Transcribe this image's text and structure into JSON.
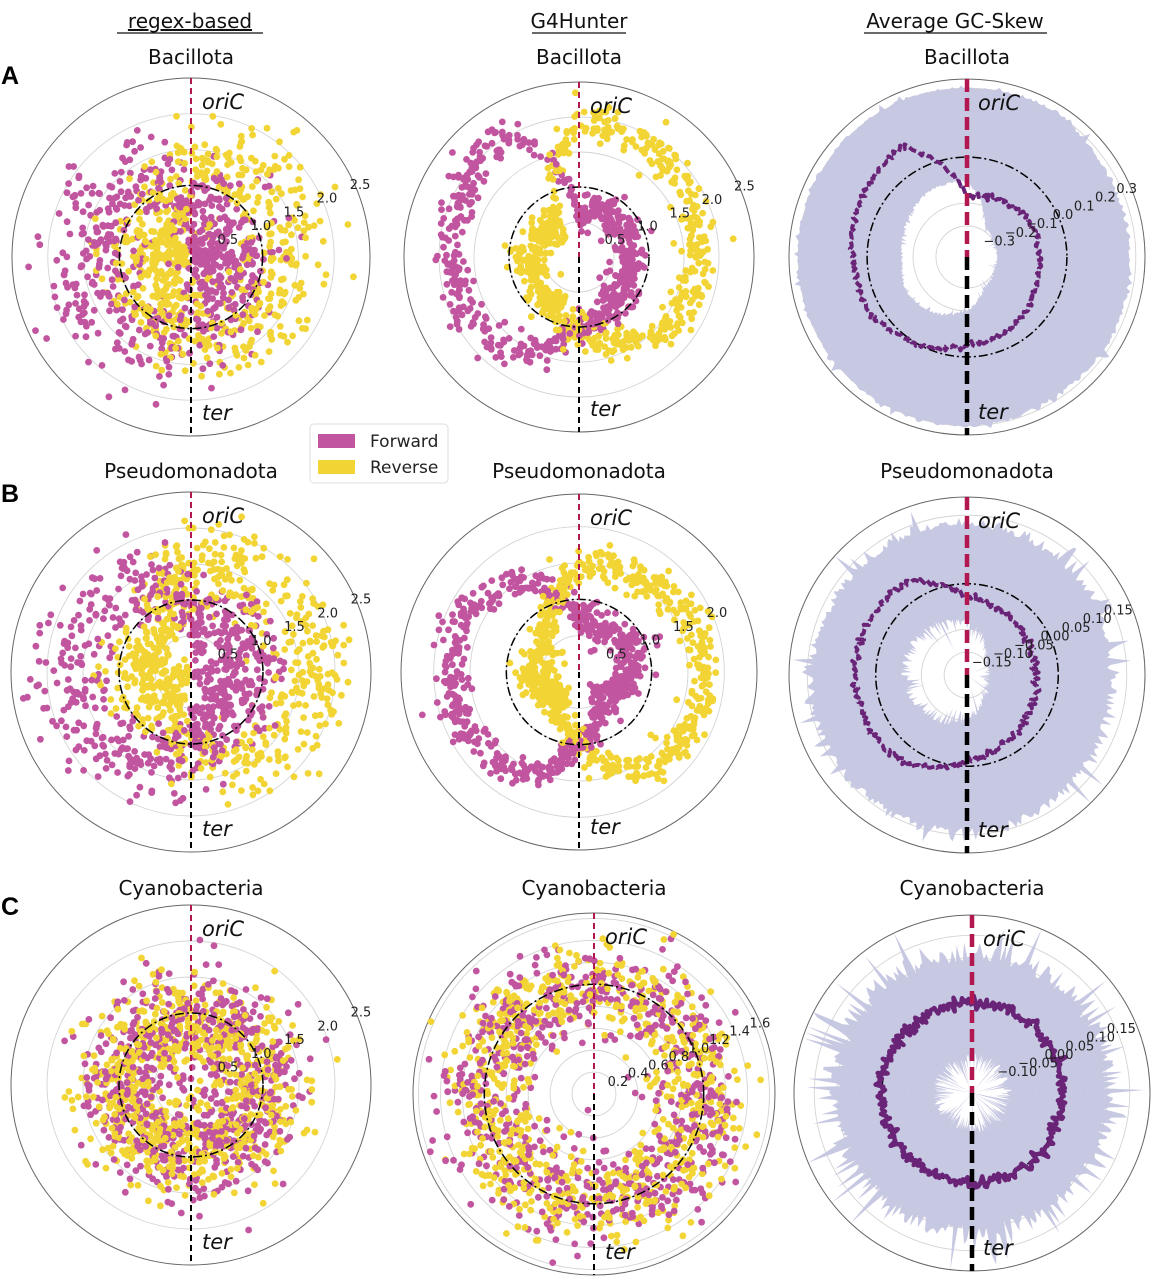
{
  "panel_letters": [
    "A",
    "B",
    "C"
  ],
  "columns": [
    "regex-based",
    "G4Hunter",
    "Average GC-Skew"
  ],
  "legend": {
    "items": [
      {
        "label": "Forward",
        "color": "#c2559f"
      },
      {
        "label": "Reverse",
        "color": "#f2d535"
      }
    ]
  },
  "colors": {
    "forward": "#c2559f",
    "reverse": "#f2d535",
    "gc_band": "#c4c5e0",
    "gc_line": "#6a2477",
    "oriC_line": "#b3174f",
    "ter_line": "#000000"
  },
  "chart_data": [
    {
      "row": "A",
      "method": "regex-based",
      "title": "Bacillota",
      "type": "polar-scatter",
      "rlim": [
        0,
        2.5
      ],
      "rtick_labels": [
        "0.5",
        "1.0",
        "1.5",
        "2.0",
        "2.5"
      ],
      "reference_circle": 1.0,
      "angle_labels": {
        "top": "oriC",
        "bottom": "ter"
      },
      "series": [
        {
          "name": "Forward",
          "profile": [
            0.7,
            0.6,
            0.6,
            0.6,
            0.65,
            0.75,
            1.0,
            1.3,
            1.4,
            1.45,
            1.4,
            1.2
          ],
          "spread": 0.38,
          "n": 650
        },
        {
          "name": "Reverse",
          "profile": [
            1.2,
            1.4,
            1.45,
            1.4,
            1.35,
            1.2,
            1.0,
            0.7,
            0.65,
            0.65,
            0.65,
            0.75
          ],
          "spread": 0.38,
          "n": 650
        }
      ]
    },
    {
      "row": "A",
      "method": "G4Hunter",
      "title": "Bacillota",
      "type": "polar-scatter",
      "rlim": [
        0,
        2.5
      ],
      "rtick_labels": [
        "0.5",
        "1.0",
        "1.5",
        "2.0",
        "2.5"
      ],
      "reference_circle": 1.0,
      "angle_labels": {
        "top": "oriC",
        "bottom": "ter"
      },
      "series": [
        {
          "name": "Forward",
          "profile": [
            0.6,
            0.75,
            0.75,
            0.75,
            0.75,
            0.85,
            1.0,
            1.6,
            1.8,
            1.85,
            1.9,
            2.1
          ],
          "spread": 0.13,
          "n": 600
        },
        {
          "name": "Reverse",
          "profile": [
            2.0,
            1.9,
            1.8,
            1.7,
            1.65,
            1.4,
            1.0,
            0.8,
            0.7,
            0.7,
            0.65,
            0.6
          ],
          "spread": 0.13,
          "n": 600
        }
      ]
    },
    {
      "row": "A",
      "method": "Average GC-Skew",
      "title": "Bacillota",
      "type": "polar-line-area",
      "rlim": [
        -0.435,
        0.34
      ],
      "rtick_labels": [
        "−0.3",
        "−0.2",
        "−0.1",
        "0.0",
        "0.1",
        "0.2",
        "0.3"
      ],
      "reference_circle": 0.0,
      "angle_labels": {
        "top": "oriC",
        "bottom": "ter"
      },
      "line": {
        "profile": [
          -0.17,
          -0.15,
          -0.12,
          -0.12,
          -0.1,
          -0.07,
          -0.05,
          0.0,
          0.05,
          0.065,
          0.09,
          0.12
        ],
        "noise": 0.006
      },
      "band": {
        "outer": [
          0.3,
          0.3,
          0.27,
          0.27,
          0.28,
          0.28,
          0.3,
          0.3,
          0.3,
          0.3,
          0.3,
          0.3
        ],
        "inner": [
          -0.1,
          -0.28,
          -0.3,
          -0.3,
          -0.3,
          -0.28,
          -0.2,
          -0.15,
          -0.13,
          -0.15,
          -0.13,
          -0.1
        ],
        "noise": 0.01
      }
    },
    {
      "row": "B",
      "method": "regex-based",
      "title": "Pseudomonadota",
      "type": "polar-scatter",
      "rlim": [
        0,
        2.5
      ],
      "rtick_labels": [
        "0.5",
        "1.0",
        "1.5",
        "2.0",
        "2.5"
      ],
      "reference_circle": 1.0,
      "angle_labels": {
        "top": "oriC",
        "bottom": "ter"
      },
      "series": [
        {
          "name": "Forward",
          "profile": [
            0.8,
            0.8,
            0.8,
            0.75,
            0.7,
            0.75,
            1.0,
            1.5,
            1.6,
            1.7,
            1.6,
            1.5
          ],
          "spread": 0.3,
          "n": 650
        },
        {
          "name": "Reverse",
          "profile": [
            1.5,
            1.5,
            1.6,
            1.65,
            1.6,
            1.5,
            1.0,
            0.6,
            0.65,
            0.7,
            0.65,
            0.8
          ],
          "spread": 0.3,
          "n": 650
        }
      ]
    },
    {
      "row": "B",
      "method": "G4Hunter",
      "title": "Pseudomonadota",
      "type": "polar-scatter",
      "rlim": [
        0,
        2.45
      ],
      "rtick_labels": [
        "0.5",
        "1.0",
        "1.5",
        "2.0"
      ],
      "reference_circle": 1.0,
      "angle_labels": {
        "top": "oriC",
        "bottom": "ter"
      },
      "series": [
        {
          "name": "Forward",
          "profile": [
            0.75,
            0.7,
            0.8,
            0.75,
            0.55,
            0.55,
            1.0,
            1.6,
            1.75,
            1.8,
            1.75,
            1.45
          ],
          "spread": 0.12,
          "n": 650
        },
        {
          "name": "Reverse",
          "profile": [
            1.45,
            1.5,
            1.7,
            1.75,
            1.7,
            1.6,
            1.0,
            0.5,
            0.55,
            0.65,
            0.55,
            0.8
          ],
          "spread": 0.12,
          "n": 650
        }
      ]
    },
    {
      "row": "B",
      "method": "Average GC-Skew",
      "title": "Pseudomonadota",
      "type": "polar-line-area",
      "rlim": [
        -0.2,
        0.19
      ],
      "rtick_labels": [
        "−0.15",
        "−0.10",
        "−0.05",
        "0.00",
        "0.05",
        "0.10",
        "0.15"
      ],
      "reference_circle": 0.0,
      "angle_labels": {
        "top": "oriC",
        "bottom": "ter"
      },
      "line": {
        "profile": [
          -0.03,
          -0.04,
          -0.05,
          -0.05,
          -0.04,
          -0.03,
          -0.01,
          0.03,
          0.045,
          0.045,
          0.045,
          0.04
        ],
        "noise": 0.004
      },
      "band": {
        "outer": [
          0.13,
          0.12,
          0.12,
          0.11,
          0.12,
          0.13,
          0.14,
          0.14,
          0.14,
          0.14,
          0.13,
          0.13
        ],
        "inner": [
          -0.08,
          -0.12,
          -0.15,
          -0.15,
          -0.15,
          -0.13,
          -0.1,
          -0.08,
          -0.07,
          -0.06,
          -0.06,
          -0.07
        ],
        "noise": 0.015
      }
    },
    {
      "row": "C",
      "method": "regex-based",
      "title": "Cyanobacteria",
      "type": "polar-scatter",
      "rlim": [
        0,
        2.5
      ],
      "rtick_labels": [
        "0.5",
        "1.0",
        "1.5",
        "2.0",
        "2.5"
      ],
      "reference_circle": 1.0,
      "angle_labels": {
        "top": "oriC",
        "bottom": "ter"
      },
      "series": [
        {
          "name": "Forward",
          "profile": [
            1.0,
            1.0,
            1.0,
            1.0,
            1.0,
            1.0,
            1.0,
            1.0,
            1.0,
            1.0,
            1.0,
            1.0
          ],
          "spread": 0.35,
          "n": 650
        },
        {
          "name": "Reverse",
          "profile": [
            1.0,
            1.0,
            1.0,
            1.0,
            1.0,
            1.0,
            1.0,
            1.0,
            1.0,
            1.0,
            1.0,
            1.0
          ],
          "spread": 0.33,
          "n": 750
        }
      ]
    },
    {
      "row": "C",
      "method": "G4Hunter",
      "title": "Cyanobacteria",
      "type": "polar-scatter",
      "rlim": [
        0,
        1.65
      ],
      "rtick_labels": [
        "0.2",
        "0.4",
        "0.6",
        "0.8",
        "1.0",
        "1.2",
        "1.4",
        "1.6"
      ],
      "reference_circle": 1.0,
      "angle_labels": {
        "top": "oriC",
        "bottom": "ter"
      },
      "series": [
        {
          "name": "Forward",
          "profile": [
            1.0,
            1.0,
            1.0,
            1.0,
            1.0,
            1.0,
            1.0,
            1.0,
            1.0,
            1.0,
            1.0,
            1.0
          ],
          "spread": 0.22,
          "n": 700
        },
        {
          "name": "Reverse",
          "profile": [
            1.0,
            1.0,
            1.0,
            1.0,
            1.0,
            1.0,
            1.0,
            1.0,
            1.0,
            1.0,
            1.0,
            1.0
          ],
          "spread": 0.2,
          "n": 800
        }
      ]
    },
    {
      "row": "C",
      "method": "Average GC-Skew",
      "title": "Cyanobacteria",
      "type": "polar-line-area",
      "rlim": [
        -0.2,
        0.195
      ],
      "rtick_labels": [
        "−0.10",
        "−0.05",
        "0.00",
        "0.05",
        "0.10",
        "0.15"
      ],
      "reference_circle": 0.0,
      "angle_labels": {
        "top": "oriC",
        "bottom": "ter"
      },
      "line": {
        "profile": [
          0.0,
          0.0,
          0.0,
          0.0,
          0.0,
          0.0,
          0.0,
          0.0,
          0.0,
          0.0,
          0.0,
          0.0
        ],
        "noise": 0.007
      },
      "band": {
        "outer": [
          0.1,
          0.1,
          0.1,
          0.1,
          0.1,
          0.1,
          0.1,
          0.1,
          0.1,
          0.1,
          0.1,
          0.1
        ],
        "inner": [
          -0.12,
          -0.12,
          -0.12,
          -0.12,
          -0.12,
          -0.12,
          -0.12,
          -0.12,
          -0.12,
          -0.12,
          -0.12,
          -0.12
        ],
        "noise": 0.03
      }
    }
  ]
}
